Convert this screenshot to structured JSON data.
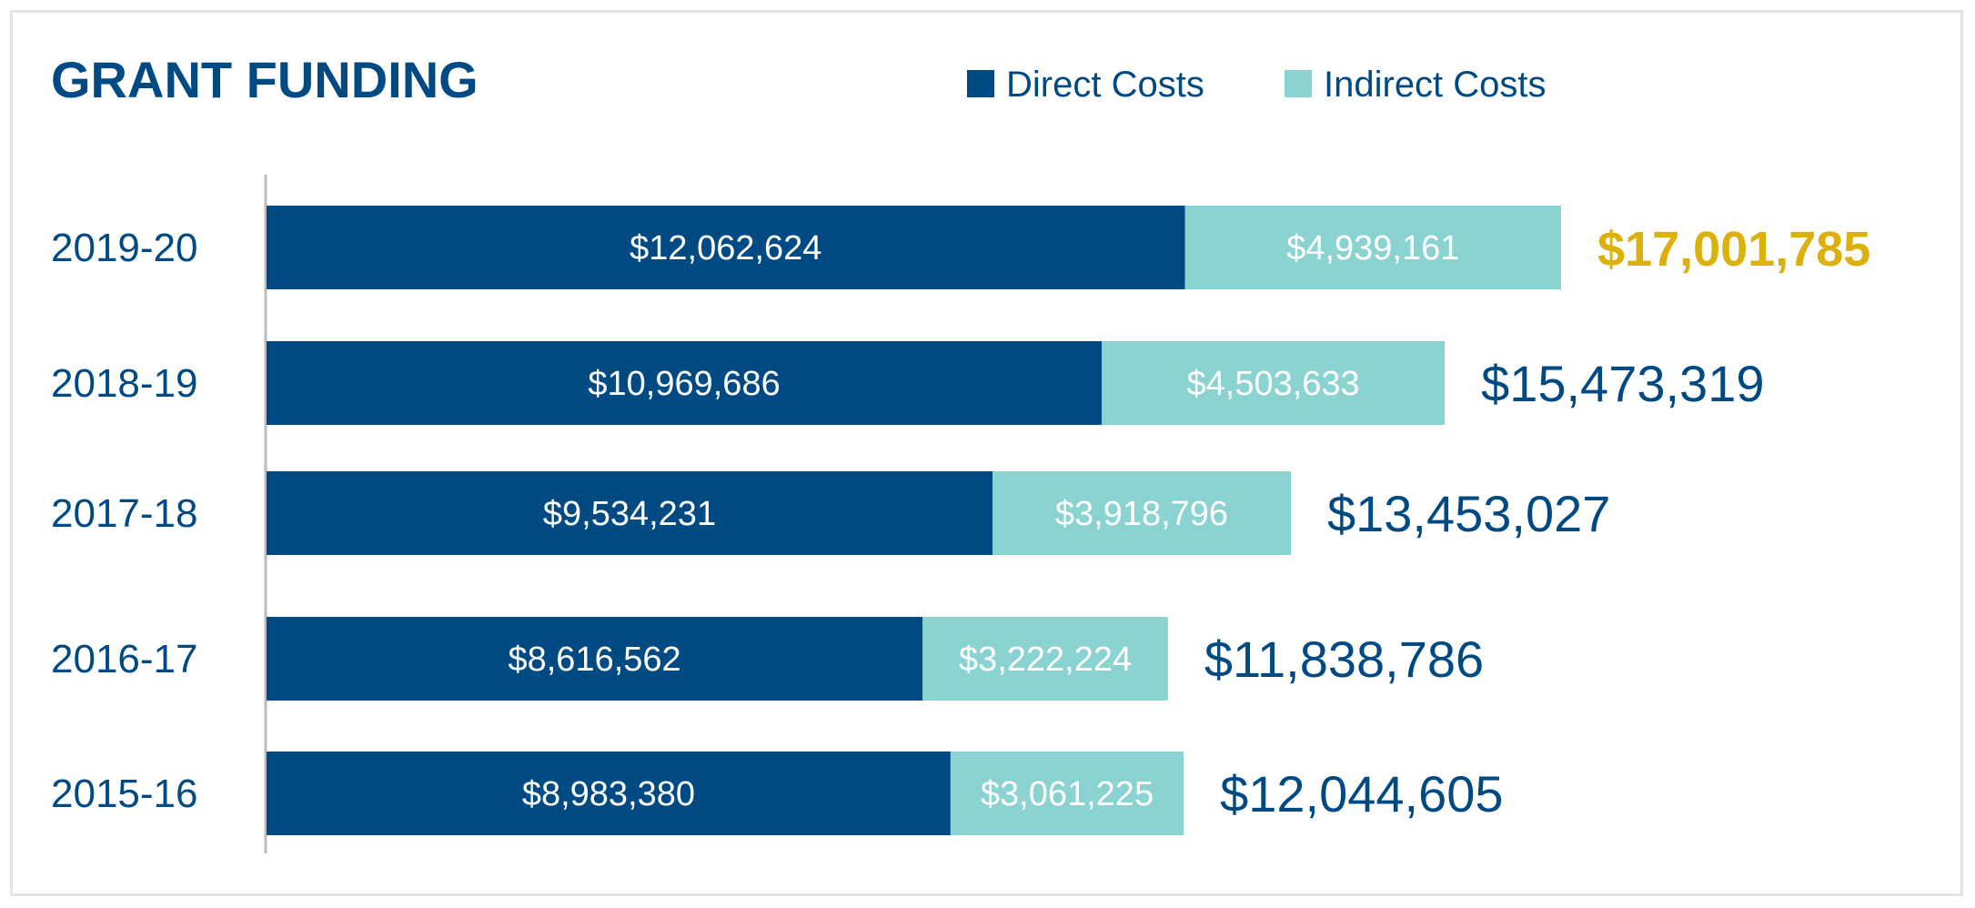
{
  "chart_data": {
    "type": "bar",
    "orientation": "horizontal",
    "stacked": true,
    "title": "GRANT FUNDING",
    "categories": [
      "2019-20",
      "2018-19",
      "2017-18",
      "2016-17",
      "2015-16"
    ],
    "series": [
      {
        "name": "Direct Costs",
        "color": "#004a84",
        "values": [
          12062624,
          10969686,
          9534231,
          8616562,
          8983380
        ],
        "labels": [
          "$12,062,624",
          "$10,969,686",
          "$9,534,231",
          "$8,616,562",
          "$8,983,380"
        ]
      },
      {
        "name": "Indirect Costs",
        "color": "#8ad3d0",
        "values": [
          4939161,
          4503633,
          3918796,
          3222224,
          3061225
        ],
        "labels": [
          "$4,939,161",
          "$4,503,633",
          "$3,918,796",
          "$3,222,224",
          "$3,061,225"
        ]
      }
    ],
    "totals": [
      "$17,001,785",
      "$15,473,319",
      "$13,453,027",
      "$11,838,786",
      "$12,044,605"
    ],
    "highlight_category": "2019-20",
    "legend_position": "top-right",
    "grid": false,
    "xlim": [
      0,
      17001785
    ]
  },
  "colors": {
    "title": "#004a84",
    "text": "#004a84",
    "highlight_total": "#dcb10d",
    "axis": "#bbbbbb",
    "border": "#e4e4e4",
    "bar_label": "#ffffff"
  }
}
